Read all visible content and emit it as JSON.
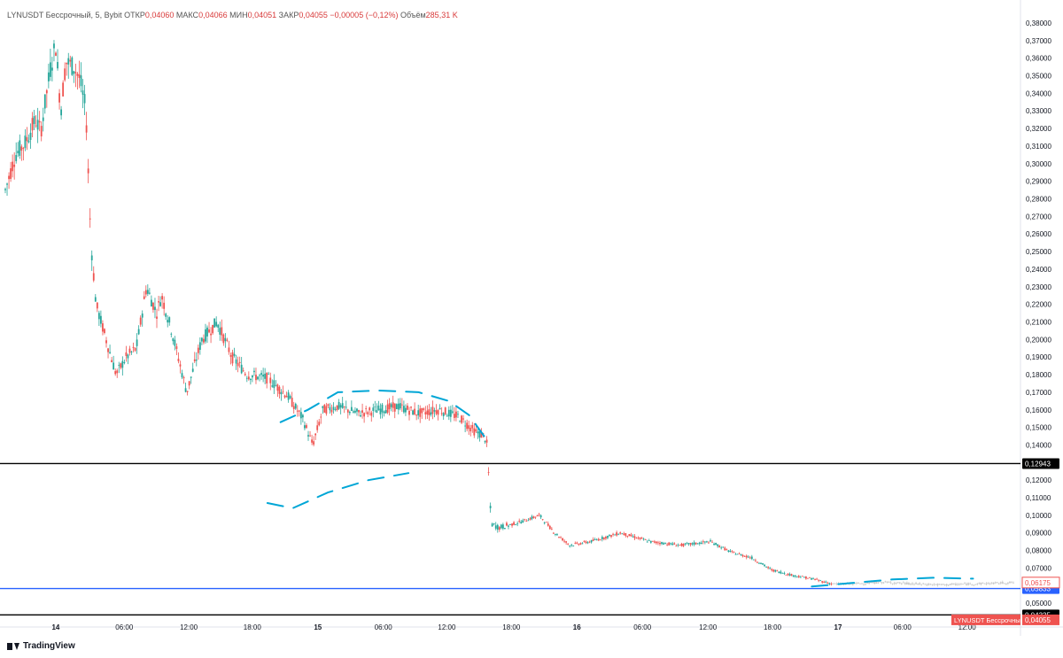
{
  "legend": {
    "symbol": "LYNUSDT Бессрочный, 5, Bybit",
    "open_label": "ОТКР",
    "open": "0,04060",
    "high_label": "МАКС",
    "high": "0,04066",
    "low_label": "МИН",
    "low": "0,04051",
    "close_label": "ЗАКР",
    "close": "0,04055",
    "change": "−0,00005 (−0,12%)",
    "volume_label": "Объём",
    "volume": "285,31 K"
  },
  "branding": {
    "name": "TradingView"
  },
  "colors": {
    "up": "#26a69a",
    "down": "#ef5350",
    "candle_light": "#c9c9c9",
    "hline_black": "#000000",
    "hline_blue": "#2962ff",
    "drawing": "#00a6d6",
    "label_red": "#ef5350"
  },
  "chart_data": {
    "type": "candlestick",
    "title": "LYNUSDT Бессрочный, 5, Bybit",
    "ylim": [
      0.04,
      0.382
    ],
    "y_ticks": [
      "0,38000",
      "0,37000",
      "0,36000",
      "0,35000",
      "0,34000",
      "0,33000",
      "0,32000",
      "0,31000",
      "0,30000",
      "0,29000",
      "0,28000",
      "0,27000",
      "0,26000",
      "0,25000",
      "0,24000",
      "0,23000",
      "0,22000",
      "0,21000",
      "0,20000",
      "0,19000",
      "0,18000",
      "0,17000",
      "0,16000",
      "0,15000",
      "0,14000",
      "0,12000",
      "0,11000",
      "0,10000",
      "0,09000",
      "0,08000",
      "0,07000",
      "0,05000"
    ],
    "x_ticks": [
      "14",
      "06:00",
      "12:00",
      "18:00",
      "15",
      "06:00",
      "12:00",
      "18:00",
      "16",
      "06:00",
      "12:00",
      "18:00",
      "17",
      "06:00",
      "12:00"
    ],
    "x_ticks_bold": [
      true,
      false,
      false,
      false,
      true,
      false,
      false,
      false,
      true,
      false,
      false,
      false,
      true,
      false,
      false
    ],
    "price_path": [
      [
        0.0,
        0.285
      ],
      [
        0.01,
        0.305
      ],
      [
        0.02,
        0.312
      ],
      [
        0.03,
        0.325
      ],
      [
        0.035,
        0.318
      ],
      [
        0.045,
        0.355
      ],
      [
        0.05,
        0.368
      ],
      [
        0.055,
        0.33
      ],
      [
        0.06,
        0.358
      ],
      [
        0.068,
        0.355
      ],
      [
        0.074,
        0.348
      ],
      [
        0.08,
        0.33
      ],
      [
        0.085,
        0.255
      ],
      [
        0.09,
        0.22
      ],
      [
        0.1,
        0.2
      ],
      [
        0.11,
        0.18
      ],
      [
        0.12,
        0.19
      ],
      [
        0.13,
        0.195
      ],
      [
        0.14,
        0.23
      ],
      [
        0.15,
        0.215
      ],
      [
        0.155,
        0.225
      ],
      [
        0.165,
        0.205
      ],
      [
        0.18,
        0.17
      ],
      [
        0.195,
        0.2
      ],
      [
        0.21,
        0.21
      ],
      [
        0.225,
        0.19
      ],
      [
        0.24,
        0.18
      ],
      [
        0.26,
        0.178
      ],
      [
        0.28,
        0.168
      ],
      [
        0.295,
        0.155
      ],
      [
        0.305,
        0.14
      ],
      [
        0.315,
        0.16
      ],
      [
        0.33,
        0.162
      ],
      [
        0.35,
        0.158
      ],
      [
        0.37,
        0.16
      ],
      [
        0.39,
        0.162
      ],
      [
        0.41,
        0.158
      ],
      [
        0.43,
        0.16
      ],
      [
        0.45,
        0.156
      ],
      [
        0.465,
        0.148
      ],
      [
        0.475,
        0.145
      ],
      [
        0.478,
        0.14
      ],
      [
        0.482,
        0.095
      ],
      [
        0.49,
        0.093
      ],
      [
        0.51,
        0.096
      ],
      [
        0.53,
        0.1
      ],
      [
        0.545,
        0.09
      ],
      [
        0.56,
        0.083
      ],
      [
        0.58,
        0.085
      ],
      [
        0.61,
        0.09
      ],
      [
        0.64,
        0.085
      ],
      [
        0.67,
        0.083
      ],
      [
        0.7,
        0.085
      ],
      [
        0.72,
        0.079
      ],
      [
        0.74,
        0.076
      ],
      [
        0.76,
        0.069
      ],
      [
        0.78,
        0.066
      ],
      [
        0.8,
        0.064
      ],
      [
        0.82,
        0.061
      ],
      [
        0.84,
        0.061
      ],
      [
        0.87,
        0.062
      ],
      [
        0.9,
        0.061
      ],
      [
        0.93,
        0.0605
      ],
      [
        0.96,
        0.061
      ],
      [
        1.0,
        0.06175
      ]
    ],
    "hlines": [
      {
        "price": 0.12943,
        "label": "0,12943",
        "color": "#000000"
      },
      {
        "price": 0.05833,
        "label": "0,05833",
        "color": "#2962ff"
      },
      {
        "price": 0.04335,
        "label": "0,04335",
        "color": "#000000"
      }
    ],
    "price_labels": [
      {
        "price": 0.06175,
        "label": "0,06175",
        "kind": "outline-red"
      },
      {
        "price": 0.04055,
        "label": "0,04055",
        "kind": "solid-red",
        "tag": "LYNUSDT Бессрочный"
      }
    ],
    "drawings": [
      {
        "name": "arc-top",
        "points": [
          [
            0.273,
            0.153
          ],
          [
            0.3,
            0.16
          ],
          [
            0.33,
            0.17
          ],
          [
            0.37,
            0.171
          ],
          [
            0.41,
            0.17
          ],
          [
            0.44,
            0.165
          ],
          [
            0.46,
            0.157
          ],
          [
            0.475,
            0.145
          ]
        ]
      },
      {
        "name": "arc-bottom",
        "points": [
          [
            0.26,
            0.107
          ],
          [
            0.285,
            0.104
          ],
          [
            0.32,
            0.113
          ],
          [
            0.36,
            0.12
          ],
          [
            0.4,
            0.124
          ]
        ]
      },
      {
        "name": "dash-line-lower",
        "points": [
          [
            0.8,
            0.0595
          ],
          [
            0.84,
            0.0615
          ],
          [
            0.88,
            0.0635
          ],
          [
            0.92,
            0.0645
          ],
          [
            0.96,
            0.064
          ]
        ]
      }
    ]
  }
}
